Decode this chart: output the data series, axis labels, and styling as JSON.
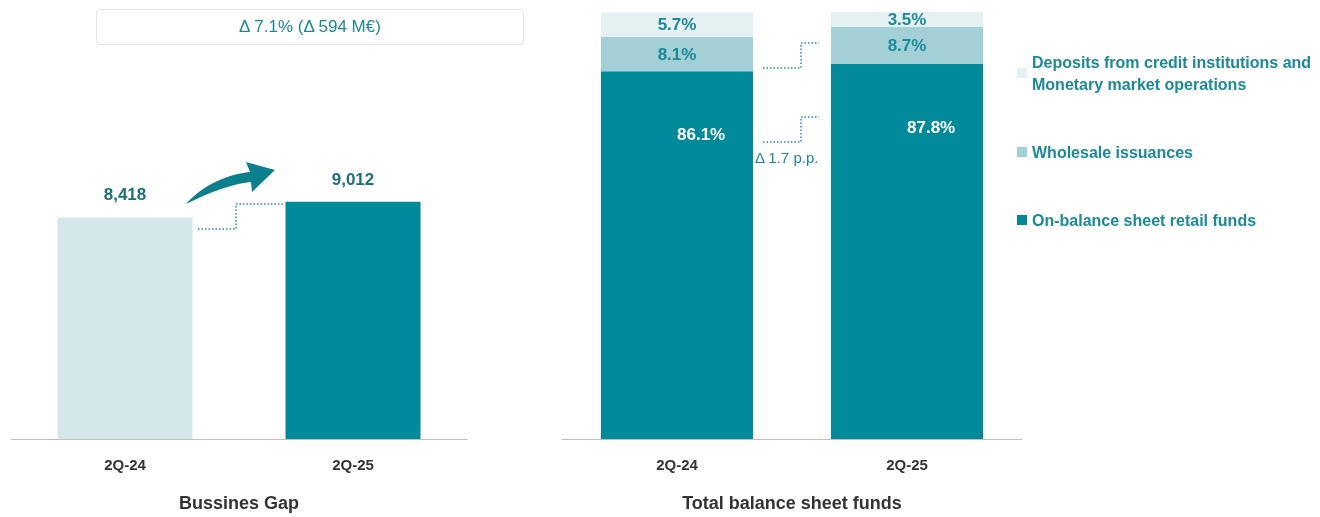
{
  "chart_data": [
    {
      "type": "bar",
      "categories": [
        "2Q-24",
        "2Q-25"
      ],
      "values": [
        8418,
        9012
      ],
      "colors": [
        "#d4e7ea",
        "#008a9a"
      ],
      "value_labels": [
        "8,418",
        "9,012"
      ],
      "xlabel": "Bussines Gap",
      "annotations": [
        "Δ 7.1% (Δ 594 M€)"
      ],
      "grid": false,
      "legend": false
    },
    {
      "type": "bar",
      "stacked": true,
      "categories": [
        "2Q-24",
        "2Q-25"
      ],
      "xlabel": "Total balance sheet funds",
      "series": [
        {
          "name": "On-balance sheet retail funds",
          "color": "#008a9a",
          "values": [
            86.1,
            87.8
          ],
          "value_labels": [
            "86.1%",
            "87.8%"
          ]
        },
        {
          "name": "Wholesale issuances",
          "color": "#a3cfd6",
          "values": [
            8.1,
            8.7
          ],
          "value_labels": [
            "8.1%",
            "8.7%"
          ]
        },
        {
          "name": "Deposits from credit institutions and Monetary market operations",
          "color": "#e4f0f2",
          "values": [
            5.7,
            3.5
          ],
          "value_labels": [
            "5.7%",
            "3.5%"
          ]
        }
      ],
      "annotations": [
        "Δ 1.7 p.p."
      ],
      "grid": false,
      "legend": "right"
    }
  ]
}
